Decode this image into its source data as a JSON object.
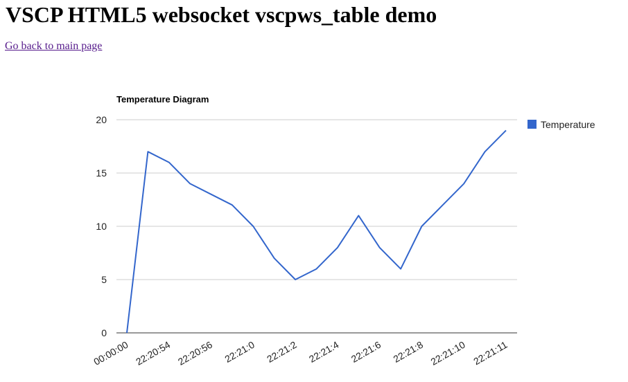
{
  "page": {
    "title": "VSCP HTML5 websocket vscpws_table demo",
    "back_link": "Go back to main page"
  },
  "colors": {
    "series": "#3366cc",
    "gridline": "#cccccc",
    "baseline": "#333333",
    "axis_text": "#222222",
    "link": "#551a8b"
  },
  "chart_data": {
    "type": "line",
    "title": "Temperature Diagram",
    "xlabel": "",
    "ylabel": "",
    "ylim": [
      0,
      20
    ],
    "yticks": [
      0,
      5,
      10,
      15,
      20
    ],
    "grid": true,
    "legend_position": "right",
    "tick_labels": [
      "00:00:00",
      "22:20:54",
      "22:20:56",
      "22:21:0",
      "22:21:2",
      "22:21:4",
      "22:21:6",
      "22:21:8",
      "22:21:10",
      "22:21:11"
    ],
    "series": [
      {
        "name": "Temperature",
        "values": [
          0,
          17,
          16,
          14,
          13,
          12,
          10,
          7,
          5,
          6,
          8,
          11,
          8,
          6,
          10,
          12,
          14,
          17,
          19
        ]
      }
    ]
  }
}
